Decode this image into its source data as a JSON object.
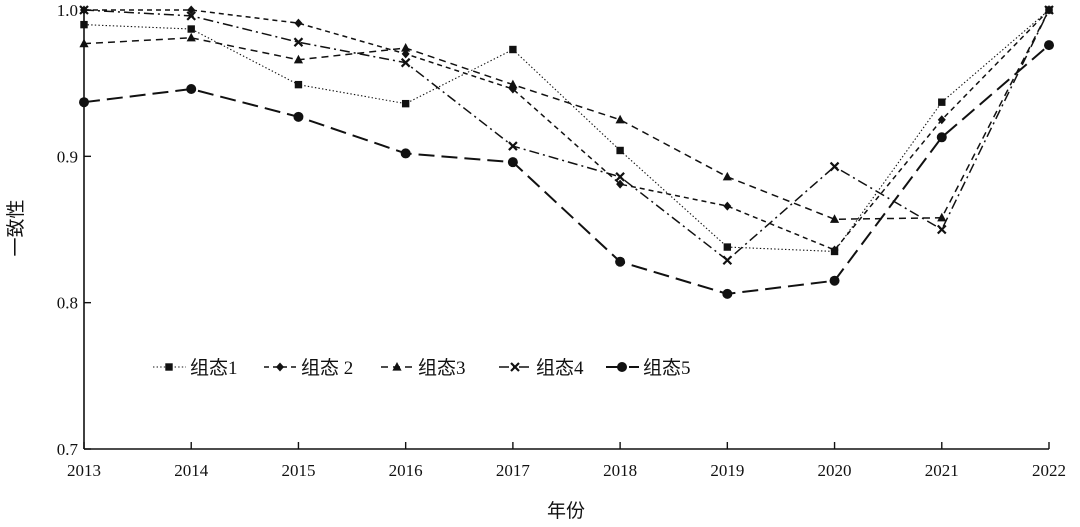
{
  "chart_data": {
    "type": "line",
    "title": "",
    "xlabel": "年份",
    "ylabel": "一致性",
    "ylim": [
      0.7,
      1.0
    ],
    "yticks": [
      "0.7",
      "0.8",
      "0.9",
      "1.0"
    ],
    "x": [
      "2013",
      "2014",
      "2015",
      "2016",
      "2017",
      "2018",
      "2019",
      "2020",
      "2021",
      "2022"
    ],
    "grid": false,
    "legend_position": "lower-left",
    "series": [
      {
        "name": "组态1",
        "marker": "square",
        "dash": "dotted",
        "values": [
          0.99,
          0.987,
          0.949,
          0.936,
          0.973,
          0.904,
          0.838,
          0.835,
          0.937,
          1.0
        ]
      },
      {
        "name": "组态 2",
        "marker": "diamond",
        "dash": "dash-short",
        "values": [
          1.0,
          1.0,
          0.991,
          0.97,
          0.946,
          0.881,
          0.866,
          0.836,
          0.925,
          1.0
        ]
      },
      {
        "name": "组态3",
        "marker": "triangle",
        "dash": "dashed",
        "values": [
          0.977,
          0.981,
          0.966,
          0.974,
          0.949,
          0.925,
          0.886,
          0.857,
          0.858,
          1.0
        ]
      },
      {
        "name": "组态4",
        "marker": "x",
        "dash": "dash-dot",
        "values": [
          1.0,
          0.996,
          0.978,
          0.964,
          0.907,
          0.886,
          0.829,
          0.893,
          0.85,
          1.0
        ]
      },
      {
        "name": "组态5",
        "marker": "circle",
        "dash": "long-dash",
        "values": [
          0.937,
          0.946,
          0.927,
          0.902,
          0.896,
          0.828,
          0.806,
          0.815,
          0.913,
          0.976
        ]
      }
    ]
  }
}
